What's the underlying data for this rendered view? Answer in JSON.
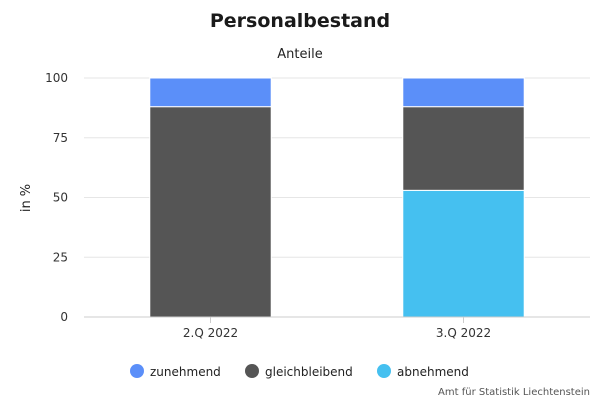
{
  "chart_data": {
    "type": "bar",
    "stacked": true,
    "title": "Personalbestand",
    "subtitle": "Anteile",
    "xlabel": "",
    "ylabel": "in %",
    "ylim": [
      0,
      100
    ],
    "yticks": [
      0,
      25,
      50,
      75,
      100
    ],
    "categories": [
      "2.Q 2022",
      "3.Q 2022"
    ],
    "series": [
      {
        "name": "abnehmend",
        "color": "#45c0f0",
        "values": [
          0,
          53
        ]
      },
      {
        "name": "gleichbleibend",
        "color": "#555555",
        "values": [
          88,
          35
        ]
      },
      {
        "name": "zunehmend",
        "color": "#5b8ff9",
        "values": [
          12,
          12
        ]
      }
    ],
    "legend_order": [
      "zunehmend",
      "gleichbleibend",
      "abnehmend"
    ],
    "legend_position": "bottom",
    "grid": true,
    "credit": "Amt für Statistik Liechtenstein"
  }
}
